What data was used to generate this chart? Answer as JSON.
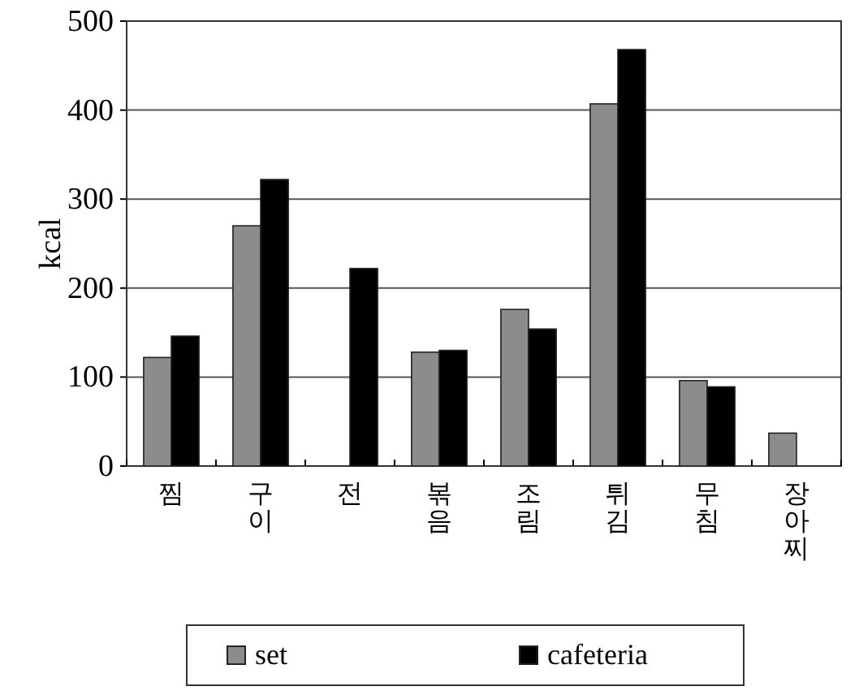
{
  "chart_data": {
    "type": "bar",
    "ylabel": "kcal",
    "categories": [
      "찜",
      "구이",
      "전",
      "볶음",
      "조림",
      "튀김",
      "무침",
      "장아찌"
    ],
    "series": [
      {
        "name": "set",
        "color": "#8c8c8c",
        "values": [
          122,
          270,
          null,
          128,
          176,
          407,
          96,
          37
        ]
      },
      {
        "name": "cafeteria",
        "color": "#000000",
        "values": [
          146,
          322,
          222,
          130,
          154,
          468,
          89,
          null
        ]
      }
    ],
    "ylim": [
      0,
      500
    ],
    "yticks": [
      0,
      100,
      200,
      300,
      400,
      500
    ],
    "grid": "y",
    "legend": "bottom"
  }
}
